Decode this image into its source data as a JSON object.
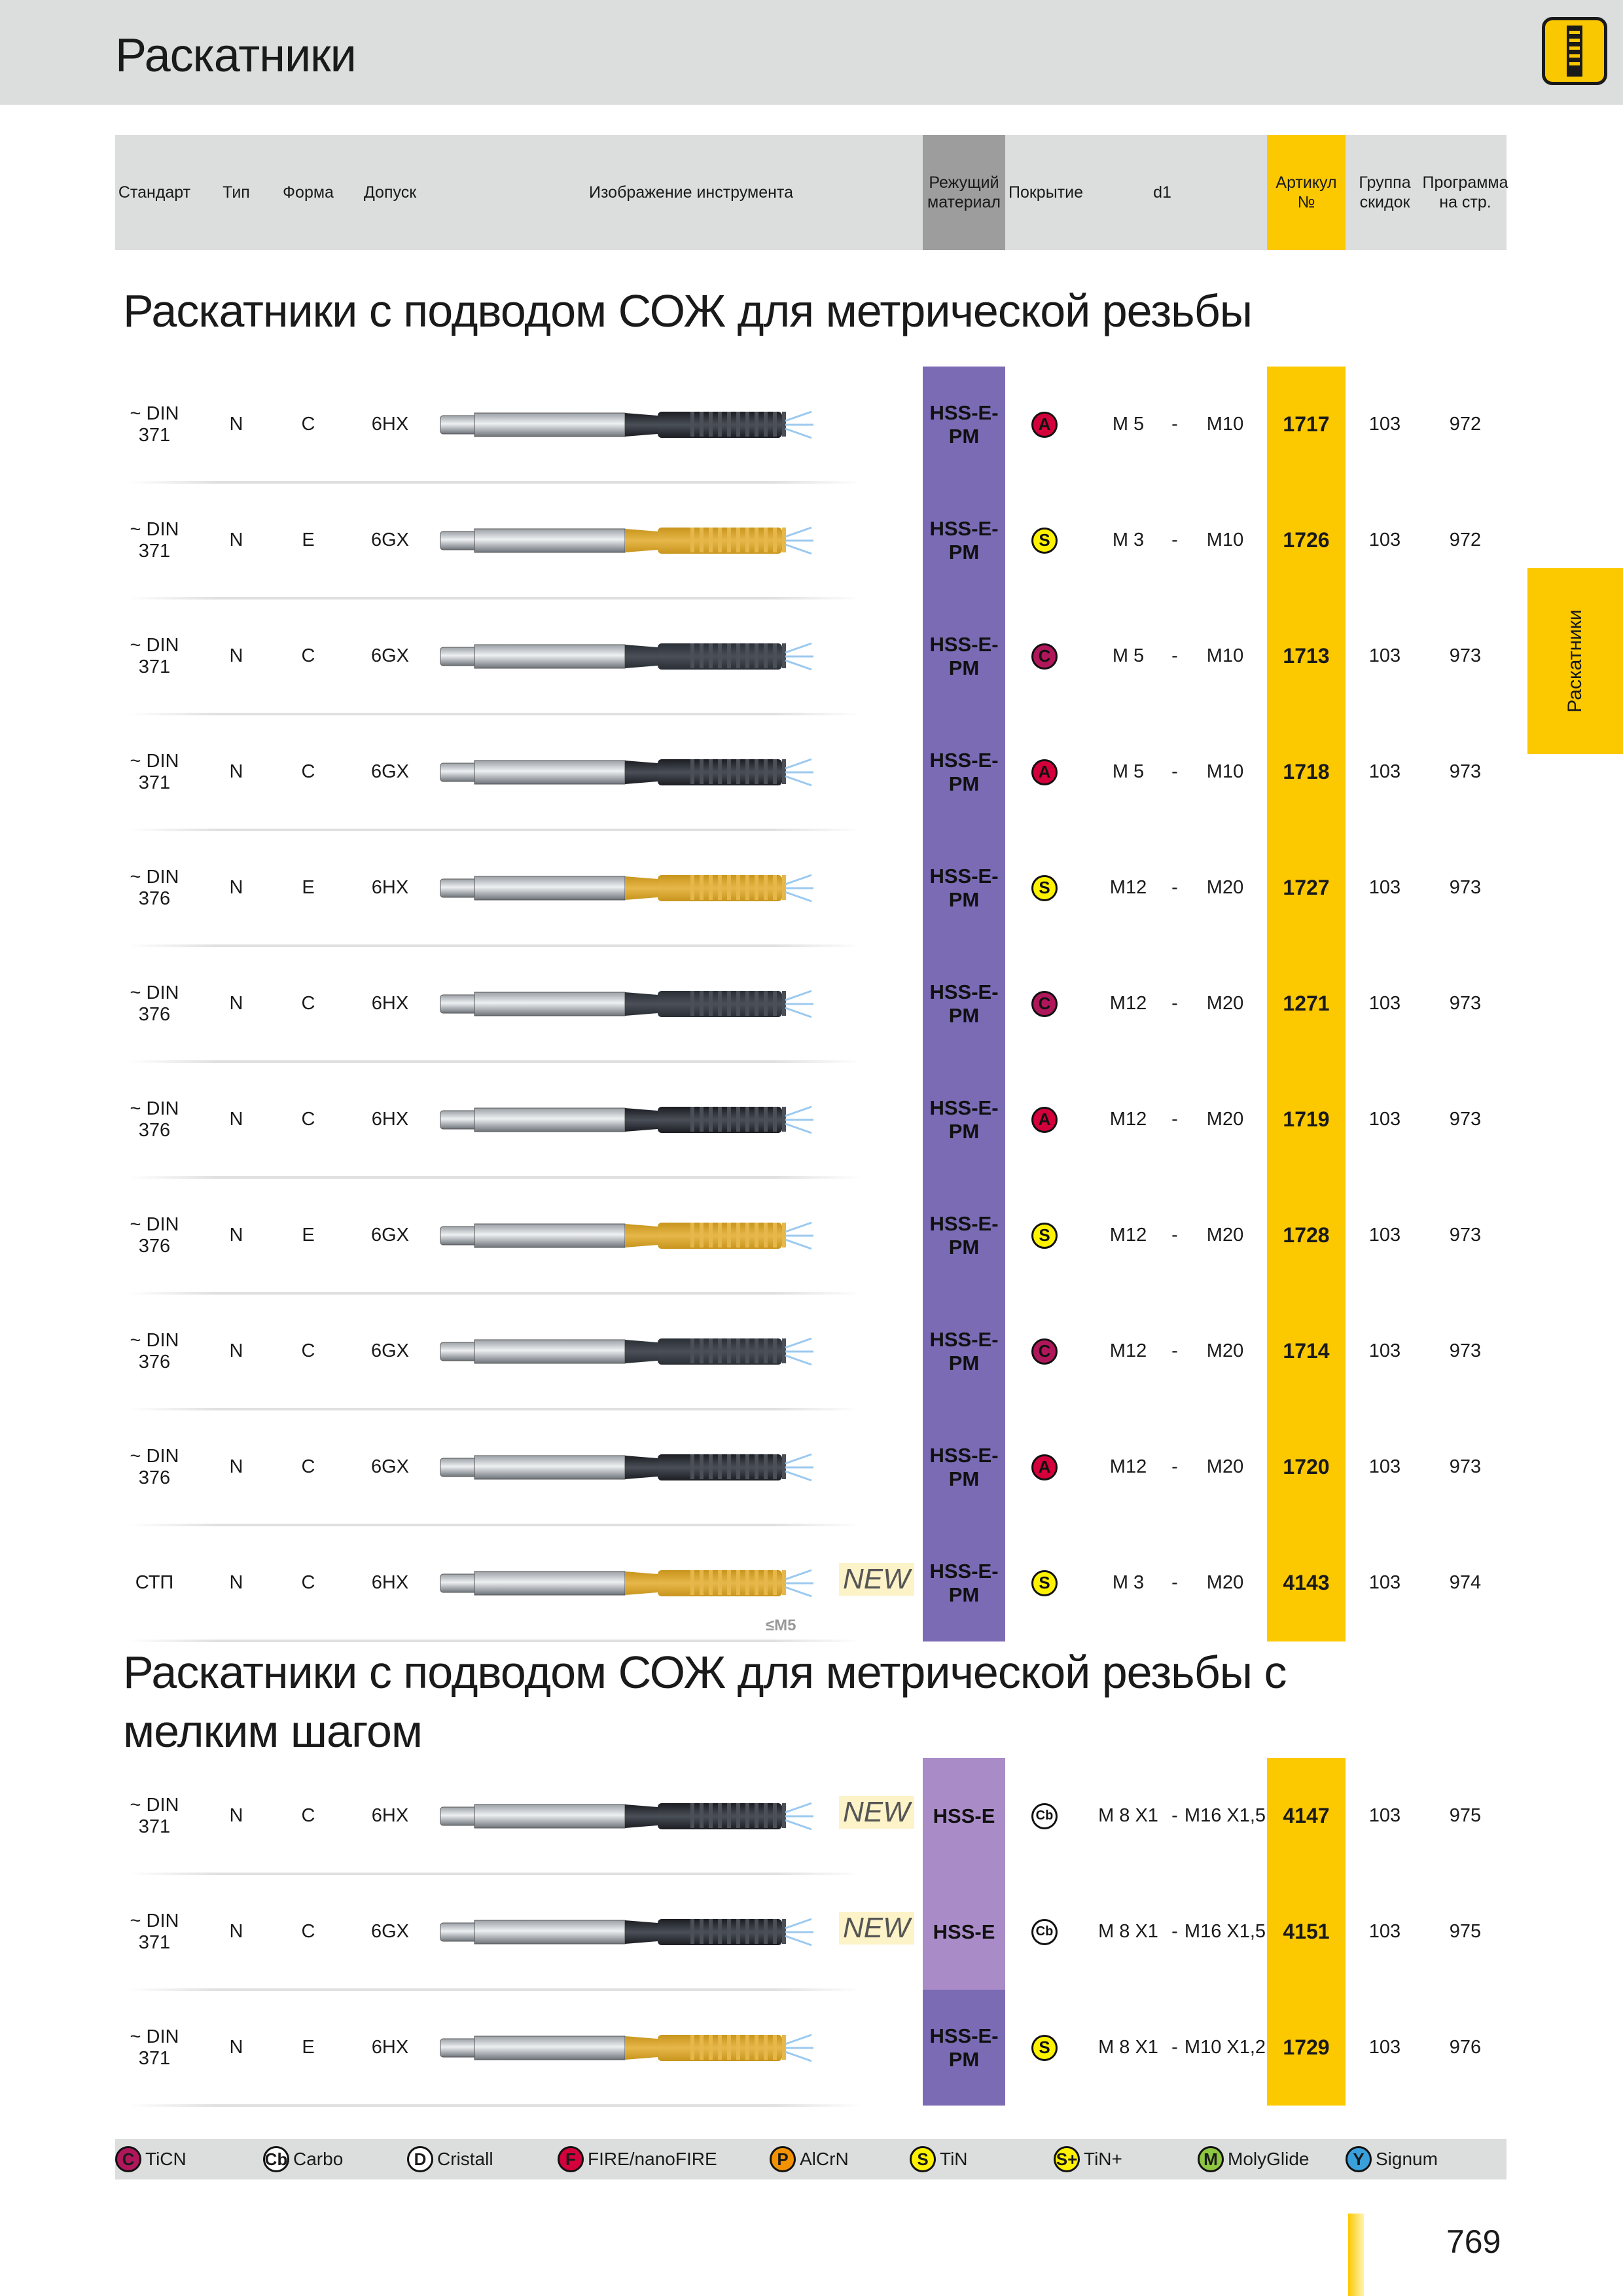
{
  "page": {
    "title": "Раскатники",
    "side_tab": "Раскатники",
    "page_number": "769"
  },
  "header": {
    "standard": "Стандарт",
    "type": "Тип",
    "form": "Форма",
    "tolerance": "Допуск",
    "image": "Изображение инструмента",
    "material": "Режущий материал",
    "coating": "Покрытие",
    "d1": "d1",
    "article": "Артикул №",
    "discount": "Группа скидок",
    "program": "Программа на стр."
  },
  "sections": [
    {
      "title": "Раскатники с подводом СОЖ для метрической резьбы",
      "rows": [
        {
          "standard": "~ DIN 371",
          "type": "N",
          "form": "C",
          "tolerance": "6HX",
          "tool": "black",
          "material": "HSS-E-PM",
          "coating": "A",
          "d1_from": "M 5",
          "dash": "-",
          "d1_to": "M10",
          "article": "1717",
          "discount": "103",
          "program": "972"
        },
        {
          "standard": "~ DIN 371",
          "type": "N",
          "form": "E",
          "tolerance": "6GX",
          "tool": "gold",
          "material": "HSS-E-PM",
          "coating": "S",
          "d1_from": "M 3",
          "dash": "-",
          "d1_to": "M10",
          "article": "1726",
          "discount": "103",
          "program": "972"
        },
        {
          "standard": "~ DIN 371",
          "type": "N",
          "form": "C",
          "tolerance": "6GX",
          "tool": "dark",
          "material": "HSS-E-PM",
          "coating": "C",
          "d1_from": "M 5",
          "dash": "-",
          "d1_to": "M10",
          "article": "1713",
          "discount": "103",
          "program": "973"
        },
        {
          "standard": "~ DIN 371",
          "type": "N",
          "form": "C",
          "tolerance": "6GX",
          "tool": "black",
          "material": "HSS-E-PM",
          "coating": "A",
          "d1_from": "M 5",
          "dash": "-",
          "d1_to": "M10",
          "article": "1718",
          "discount": "103",
          "program": "973"
        },
        {
          "standard": "~ DIN 376",
          "type": "N",
          "form": "E",
          "tolerance": "6HX",
          "tool": "gold",
          "material": "HSS-E-PM",
          "coating": "S",
          "d1_from": "M12",
          "dash": "-",
          "d1_to": "M20",
          "article": "1727",
          "discount": "103",
          "program": "973"
        },
        {
          "standard": "~ DIN 376",
          "type": "N",
          "form": "C",
          "tolerance": "6HX",
          "tool": "dark",
          "material": "HSS-E-PM",
          "coating": "C",
          "d1_from": "M12",
          "dash": "-",
          "d1_to": "M20",
          "article": "1271",
          "discount": "103",
          "program": "973"
        },
        {
          "standard": "~ DIN 376",
          "type": "N",
          "form": "C",
          "tolerance": "6HX",
          "tool": "black",
          "material": "HSS-E-PM",
          "coating": "A",
          "d1_from": "M12",
          "dash": "-",
          "d1_to": "M20",
          "article": "1719",
          "discount": "103",
          "program": "973"
        },
        {
          "standard": "~ DIN 376",
          "type": "N",
          "form": "E",
          "tolerance": "6GX",
          "tool": "gold",
          "material": "HSS-E-PM",
          "coating": "S",
          "d1_from": "M12",
          "dash": "-",
          "d1_to": "M20",
          "article": "1728",
          "discount": "103",
          "program": "973"
        },
        {
          "standard": "~ DIN 376",
          "type": "N",
          "form": "C",
          "tolerance": "6GX",
          "tool": "dark",
          "material": "HSS-E-PM",
          "coating": "C",
          "d1_from": "M12",
          "dash": "-",
          "d1_to": "M20",
          "article": "1714",
          "discount": "103",
          "program": "973"
        },
        {
          "standard": "~ DIN 376",
          "type": "N",
          "form": "C",
          "tolerance": "6GX",
          "tool": "black",
          "material": "HSS-E-PM",
          "coating": "A",
          "d1_from": "M12",
          "dash": "-",
          "d1_to": "M20",
          "article": "1720",
          "discount": "103",
          "program": "973"
        },
        {
          "standard": "СТП",
          "type": "N",
          "form": "C",
          "tolerance": "6HX",
          "tool": "gold",
          "material": "HSS-E-PM",
          "coating": "S",
          "d1_from": "M 3",
          "dash": "-",
          "d1_to": "M20",
          "article": "4143",
          "discount": "103",
          "program": "974",
          "new": "NEW",
          "note": "≤M5"
        }
      ]
    },
    {
      "title": "Раскатники с подводом СОЖ для метрической резьбы с мелким шагом",
      "rows": [
        {
          "standard": "~ DIN 371",
          "type": "N",
          "form": "C",
          "tolerance": "6HX",
          "tool": "black",
          "material": "HSS-E",
          "coating": "Cb",
          "d1_from": "M 8 X1",
          "dash": "-",
          "d1_to": "M16 X1,5",
          "article": "4147",
          "discount": "103",
          "program": "975",
          "new": "NEW"
        },
        {
          "standard": "~ DIN 371",
          "type": "N",
          "form": "C",
          "tolerance": "6GX",
          "tool": "black",
          "material": "HSS-E",
          "coating": "Cb",
          "d1_from": "M 8 X1",
          "dash": "-",
          "d1_to": "M16 X1,5",
          "article": "4151",
          "discount": "103",
          "program": "975",
          "new": "NEW"
        },
        {
          "standard": "~ DIN 371",
          "type": "N",
          "form": "E",
          "tolerance": "6HX",
          "tool": "gold",
          "material": "HSS-E-PM",
          "coating": "S",
          "d1_from": "M 8 X1",
          "dash": "-",
          "d1_to": "M10 X1,2",
          "article": "1729",
          "discount": "103",
          "program": "976"
        }
      ]
    }
  ],
  "legend": [
    {
      "code": "C",
      "label": "TiCN",
      "color": "#b0175a"
    },
    {
      "code": "Cb",
      "label": "Carbo",
      "color": "#ffffff"
    },
    {
      "code": "D",
      "label": "Cristall",
      "color": "#ffffff"
    },
    {
      "code": "F",
      "label": "FIRE/nanoFIRE",
      "color": "#d4003c"
    },
    {
      "code": "P",
      "label": "AlCrN",
      "color": "#f39200"
    },
    {
      "code": "S",
      "label": "TiN",
      "color": "#fff200"
    },
    {
      "code": "S+",
      "label": "TiN+",
      "color": "#fff200"
    },
    {
      "code": "M",
      "label": "MolyGlide",
      "color": "#8dc63f"
    },
    {
      "code": "Y",
      "label": "Signum",
      "color": "#3aa0dc"
    }
  ]
}
